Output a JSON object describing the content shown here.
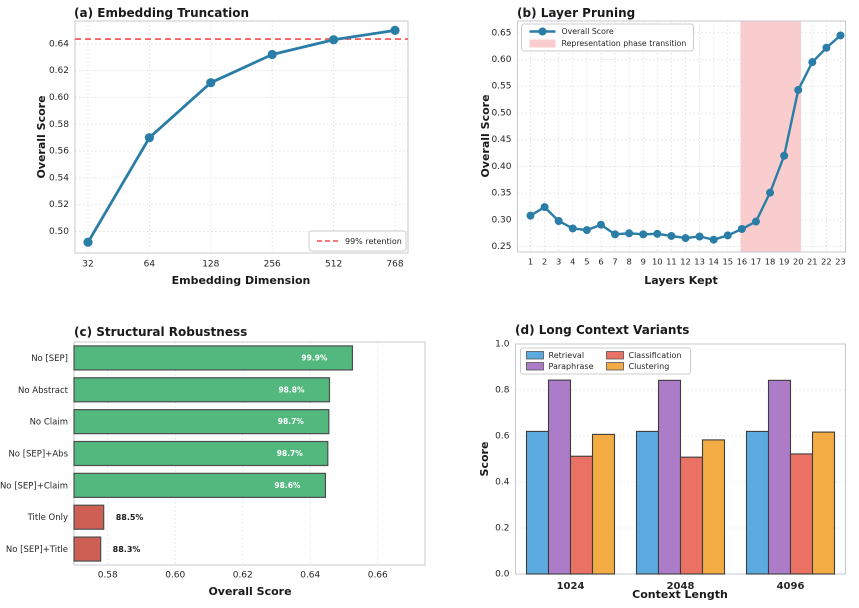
{
  "figure": {
    "background": "#ffffff",
    "grid_color": "#dcdcdc",
    "spine_color": "#c6cacf",
    "tick_color": "#262626"
  },
  "chart_data": [
    {
      "panel": "a",
      "type": "line",
      "title": "(a) Embedding Truncation",
      "xlabel": "Embedding Dimension",
      "ylabel": "Overall Score",
      "categories": [
        "32",
        "64",
        "128",
        "256",
        "512",
        "768"
      ],
      "values": [
        0.492,
        0.57,
        0.611,
        0.632,
        0.643,
        0.65
      ],
      "ylim": [
        0.484,
        0.657
      ],
      "yticks": [
        0.5,
        0.52,
        0.54,
        0.56,
        0.58,
        0.6,
        0.62,
        0.64
      ],
      "line_color": "#2a7da6",
      "hline": {
        "value": 0.6435,
        "label": "99% retention",
        "color": "#fb4b4b",
        "style": "dashed"
      },
      "legend_position": "lower right",
      "grid": true
    },
    {
      "panel": "b",
      "type": "line",
      "title": "(b) Layer Pruning",
      "xlabel": "Layers Kept",
      "ylabel": "Overall Score",
      "series_label": "Overall Score",
      "x": [
        1,
        2,
        3,
        4,
        5,
        6,
        7,
        8,
        9,
        10,
        11,
        12,
        13,
        14,
        15,
        16,
        17,
        18,
        19,
        20,
        21,
        22,
        23
      ],
      "values": [
        0.308,
        0.324,
        0.298,
        0.284,
        0.281,
        0.291,
        0.273,
        0.275,
        0.273,
        0.274,
        0.27,
        0.266,
        0.269,
        0.263,
        0.271,
        0.283,
        0.297,
        0.351,
        0.42,
        0.543,
        0.595,
        0.622,
        0.645
      ],
      "ylim": [
        0.24,
        0.672
      ],
      "yticks": [
        0.25,
        0.3,
        0.35,
        0.4,
        0.45,
        0.5,
        0.55,
        0.6,
        0.65
      ],
      "line_color": "#2a7da6",
      "band": {
        "from": 15.9,
        "to": 20.2,
        "label": "Representation phase transition",
        "color": "#f9cdcd"
      },
      "legend_position": "upper left",
      "grid": true
    },
    {
      "panel": "c",
      "type": "hbar",
      "title": "(c) Structural Robustness",
      "xlabel": "Overall Score",
      "categories": [
        "No [SEP]",
        "No Abstract",
        "No Claim",
        "No [SEP]+Abs",
        "No [SEP]+Claim",
        "Title Only",
        "No [SEP]+Title"
      ],
      "values": [
        0.6525,
        0.6457,
        0.6455,
        0.6452,
        0.6445,
        0.5788,
        0.5779
      ],
      "bar_labels": [
        "99.9%",
        "98.8%",
        "98.7%",
        "98.7%",
        "98.6%",
        "88.5%",
        "88.3%"
      ],
      "bar_colors": [
        "#52b87e",
        "#52b87e",
        "#52b87e",
        "#52b87e",
        "#52b87e",
        "#cd5f55",
        "#cd5f55"
      ],
      "label_inside": [
        true,
        true,
        true,
        true,
        true,
        false,
        false
      ],
      "xlim": [
        0.57,
        0.674
      ],
      "xticks": [
        0.58,
        0.6,
        0.62,
        0.64,
        0.66
      ],
      "grid": true
    },
    {
      "panel": "d",
      "type": "grouped_bar",
      "title": "(d) Long Context Variants",
      "xlabel": "Context Length",
      "ylabel": "Score",
      "categories": [
        "1024",
        "2048",
        "4096"
      ],
      "series": [
        {
          "name": "Retrieval",
          "color": "#5babe1",
          "values": [
            0.62,
            0.62,
            0.62
          ]
        },
        {
          "name": "Paraphrase",
          "color": "#ac7cc8",
          "values": [
            0.843,
            0.842,
            0.842
          ]
        },
        {
          "name": "Classification",
          "color": "#ea7265",
          "values": [
            0.512,
            0.508,
            0.522
          ]
        },
        {
          "name": "Clustering",
          "color": "#f2ac43",
          "values": [
            0.607,
            0.583,
            0.617
          ]
        }
      ],
      "ylim": [
        0.0,
        1.0
      ],
      "yticks": [
        0.0,
        0.2,
        0.4,
        0.6,
        0.8,
        1.0
      ],
      "legend_position": "upper left",
      "legend_columns": 2,
      "grid": true
    }
  ]
}
